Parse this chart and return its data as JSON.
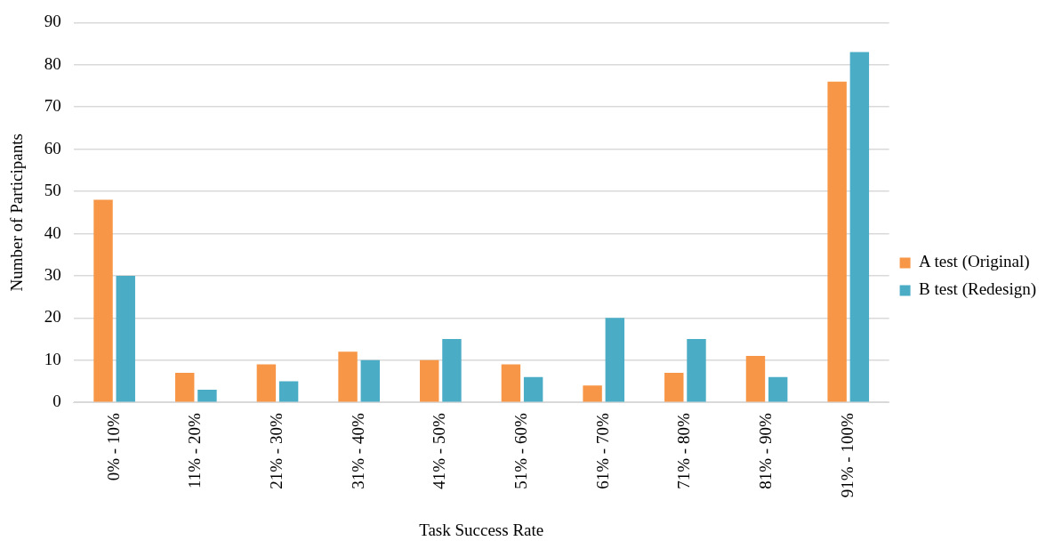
{
  "chart_data": {
    "type": "bar",
    "xlabel": "Task Success Rate",
    "ylabel": "Number of Participants",
    "categories": [
      "0% - 10%",
      "11% - 20%",
      "21% - 30%",
      "31% - 40%",
      "41% - 50%",
      "51% - 60%",
      "61% - 70%",
      "71% - 80%",
      "81% - 90%",
      "91% - 100%"
    ],
    "series": [
      {
        "name": "A test (Original)",
        "color": "#f79646",
        "values": [
          48,
          7,
          9,
          12,
          10,
          9,
          4,
          7,
          11,
          76
        ]
      },
      {
        "name": "B test (Redesign)",
        "color": "#4bacc6",
        "values": [
          30,
          3,
          5,
          10,
          15,
          6,
          20,
          15,
          6,
          83
        ]
      }
    ],
    "ylim": [
      0,
      90
    ],
    "yticks": [
      0,
      10,
      20,
      30,
      40,
      50,
      60,
      70,
      80,
      90
    ],
    "grid": "y",
    "legend": "right"
  }
}
